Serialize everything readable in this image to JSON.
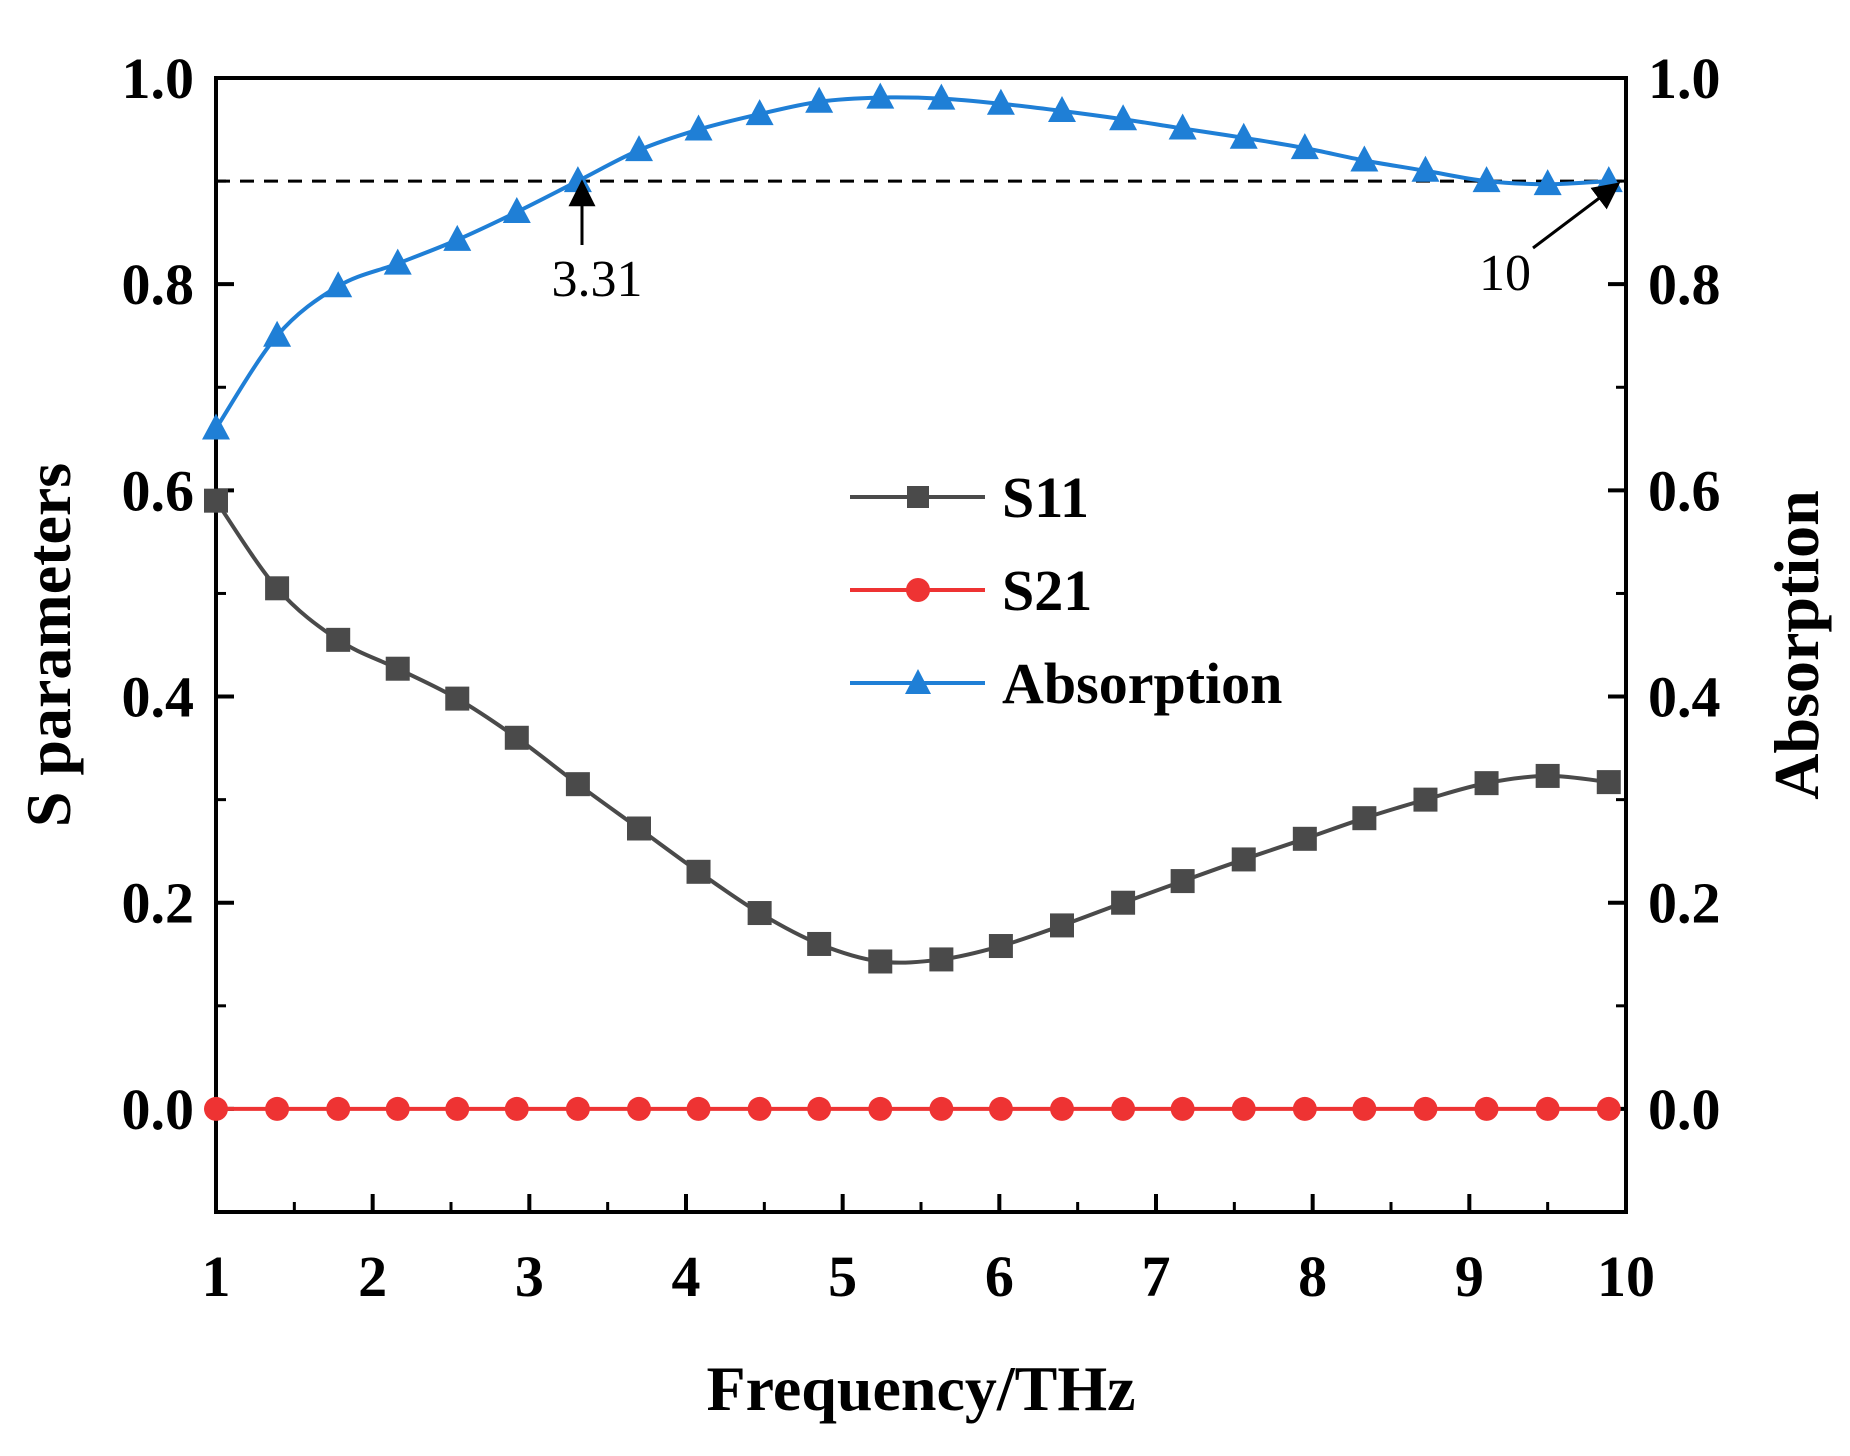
{
  "chart_data": {
    "type": "line",
    "xlabel": "Frequency/THz",
    "ylabel_left": "S parameters",
    "ylabel_right": "Absorption",
    "xlim": [
      1,
      10
    ],
    "ylim": [
      -0.1,
      1.0
    ],
    "x_ticks": [
      "1",
      "2",
      "3",
      "4",
      "5",
      "6",
      "7",
      "8",
      "9",
      "10"
    ],
    "y_ticks": [
      "0.0",
      "0.2",
      "0.4",
      "0.6",
      "0.8",
      "1.0"
    ],
    "y_tick_values": [
      0.0,
      0.2,
      0.4,
      0.6,
      0.8,
      1.0
    ],
    "x": [
      1.0,
      1.39,
      1.78,
      2.16,
      2.54,
      2.92,
      3.31,
      3.7,
      4.08,
      4.47,
      4.85,
      5.24,
      5.63,
      6.01,
      6.4,
      6.79,
      7.17,
      7.56,
      7.95,
      8.33,
      8.72,
      9.11,
      9.5,
      9.89
    ],
    "series": [
      {
        "name": "S11",
        "color": "#4a4a4a",
        "marker": "square",
        "values": [
          0.59,
          0.505,
          0.455,
          0.427,
          0.398,
          0.36,
          0.315,
          0.272,
          0.23,
          0.19,
          0.16,
          0.143,
          0.145,
          0.158,
          0.178,
          0.2,
          0.221,
          0.242,
          0.262,
          0.282,
          0.3,
          0.316,
          0.323,
          0.317
        ]
      },
      {
        "name": "S21",
        "color": "#ee3333",
        "marker": "circle",
        "values": [
          0,
          0,
          0,
          0,
          0,
          0,
          0,
          0,
          0,
          0,
          0,
          0,
          0,
          0,
          0,
          0,
          0,
          0,
          0,
          0,
          0,
          0,
          0,
          0
        ]
      },
      {
        "name": "Absorption",
        "color": "#1f7fd6",
        "marker": "triangle",
        "values": [
          0.66,
          0.75,
          0.798,
          0.82,
          0.843,
          0.87,
          0.9,
          0.93,
          0.95,
          0.965,
          0.977,
          0.981,
          0.98,
          0.975,
          0.968,
          0.96,
          0.951,
          0.942,
          0.932,
          0.92,
          0.91,
          0.9,
          0.897,
          0.9
        ]
      }
    ],
    "reference_line": {
      "y": 0.9,
      "style": "dashed"
    },
    "annotations": [
      {
        "text": "3.31",
        "x": 3.31,
        "y": 0.9
      },
      {
        "text": "10",
        "x": 10,
        "y": 0.9
      }
    ],
    "legend_position": "center"
  }
}
